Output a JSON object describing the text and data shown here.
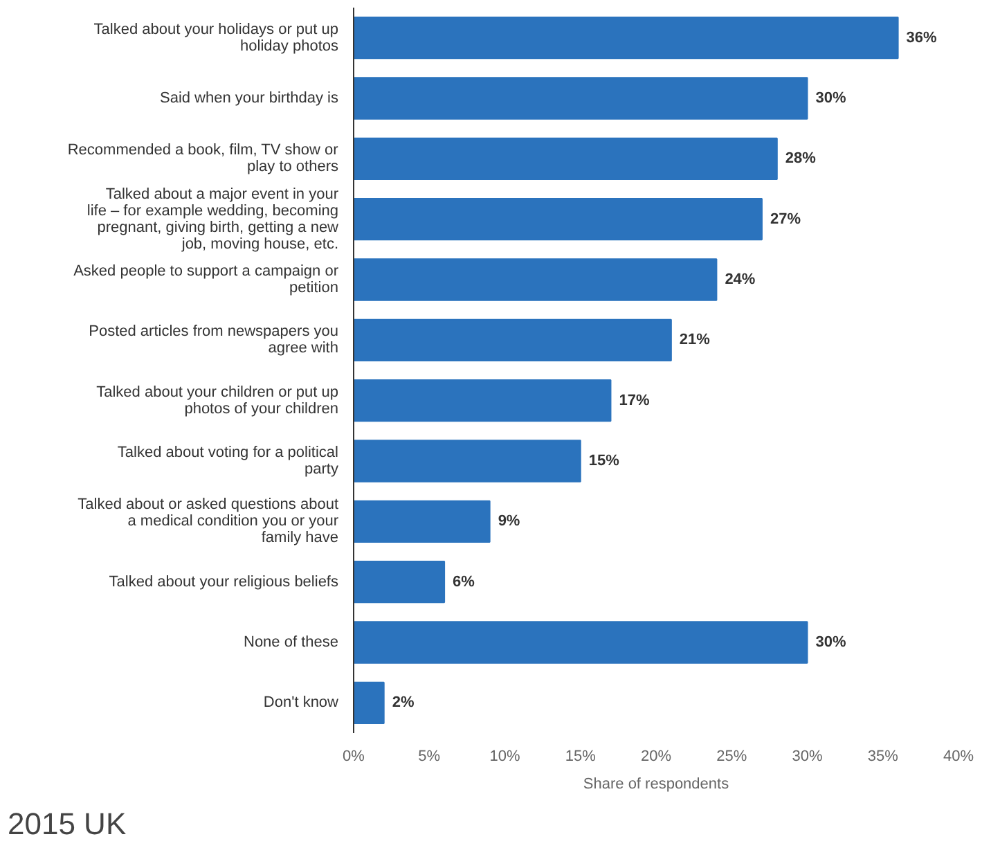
{
  "chart_data": {
    "type": "bar",
    "orientation": "horizontal",
    "xlabel": "Share of respondents",
    "categories": [
      "Talked about your holidays or put up holiday photos",
      "Said when your birthday is",
      "Recommended a book, film, TV show or play to others",
      "Talked about a major event in your life – for example wedding, becoming pregnant, giving birth, getting a new job, moving house, etc.",
      "Asked people to support a campaign or petition",
      "Posted articles from newspapers you agree with",
      "Talked about your children or put up photos of your children",
      "Talked about voting for a political party",
      "Talked about or asked questions about a medical condition you or your family have",
      "Talked about your religious beliefs",
      "None of these",
      "Don't know"
    ],
    "values": [
      36,
      30,
      28,
      27,
      24,
      21,
      17,
      15,
      9,
      6,
      30,
      2
    ],
    "value_labels": [
      "36%",
      "30%",
      "28%",
      "27%",
      "24%",
      "21%",
      "17%",
      "15%",
      "9%",
      "6%",
      "30%",
      "2%"
    ],
    "color": "#2b73bd",
    "xlim": [
      0,
      40
    ],
    "xticks": [
      {
        "value": 0,
        "label": "0%"
      },
      {
        "value": 5,
        "label": "5%"
      },
      {
        "value": 10,
        "label": "10%"
      },
      {
        "value": 15,
        "label": "15%"
      },
      {
        "value": 20,
        "label": "20%"
      },
      {
        "value": 25,
        "label": "25%"
      },
      {
        "value": 30,
        "label": "30%"
      },
      {
        "value": 35,
        "label": "35%"
      },
      {
        "value": 40,
        "label": "40%"
      }
    ],
    "grid": false,
    "annotations": [
      "2015 UK"
    ]
  }
}
